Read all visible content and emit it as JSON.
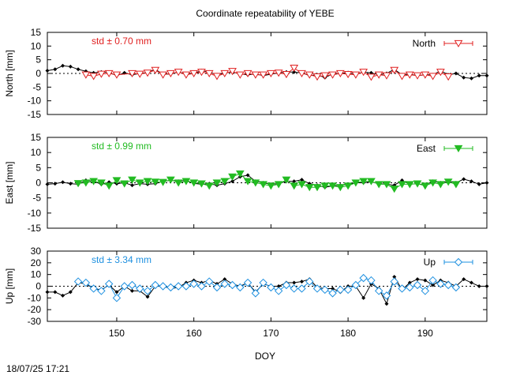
{
  "footer_timestamp": "18/07/25 17:21",
  "chart_data": {
    "type": "line",
    "title": "Coordinate repeatability of YEBE",
    "xlabel": "DOY",
    "xlim": [
      141,
      198
    ],
    "xticks": [
      150,
      160,
      170,
      180,
      190
    ],
    "panels": [
      {
        "name": "north",
        "ylabel": "North [mm]",
        "ylim": [
          -15,
          15
        ],
        "yticks": [
          15,
          10,
          5,
          0,
          -5,
          -10,
          -15
        ],
        "legend": "North",
        "legend_position": "top-right",
        "std_label": "std ± 0.70 mm",
        "color": "#e02020",
        "marker": "triangle-down-open",
        "series_black": {
          "x": [
            141,
            142,
            143,
            144,
            145,
            146,
            147,
            148,
            149,
            150,
            151,
            152,
            153,
            154,
            155,
            156,
            157,
            158,
            159,
            160,
            161,
            162,
            163,
            164,
            165,
            166,
            167,
            168,
            169,
            170,
            171,
            172,
            173,
            174,
            175,
            176,
            177,
            178,
            179,
            180,
            181,
            182,
            183,
            184,
            185,
            186,
            187,
            188,
            189,
            190,
            191,
            192,
            193,
            194,
            195,
            196,
            197,
            198
          ],
          "values": [
            1,
            1.5,
            2.8,
            2.5,
            1.5,
            0.8,
            0.2,
            0.5,
            0.3,
            -0.8,
            0.2,
            -0.5,
            0,
            0.3,
            1.5,
            -0.3,
            -0.2,
            0.5,
            -0.2,
            0,
            1,
            0.5,
            -0.5,
            0.2,
            0.5,
            -0.2,
            -0.5,
            -0.2,
            -0.8,
            -0.3,
            0.2,
            0.5,
            0.5,
            0.2,
            -0.8,
            -0.5,
            -1.5,
            -0.2,
            0,
            0.3,
            -0.3,
            0.5,
            0.2,
            -0.5,
            0,
            1.5,
            -0.5,
            -0.3,
            -0.8,
            -0.5,
            -0.5,
            1,
            -0.5,
            0,
            -1.5,
            -1.8,
            -0.8,
            -0.8
          ]
        },
        "series_colored": {
          "x": [
            146,
            147,
            148,
            149,
            150,
            152,
            153,
            154,
            155,
            156,
            157,
            158,
            159,
            160,
            161,
            162,
            163,
            164,
            165,
            166,
            167,
            168,
            169,
            170,
            171,
            172,
            173,
            174,
            175,
            176,
            177,
            178,
            179,
            180,
            181,
            182,
            183,
            184,
            185,
            186,
            187,
            188,
            189,
            190,
            191,
            192,
            193
          ],
          "values": [
            -0.5,
            -1,
            -0.2,
            0,
            -0.5,
            0,
            -0.2,
            0.2,
            1.2,
            -0.5,
            0,
            0.5,
            -0.5,
            0,
            0.5,
            0,
            -1,
            0,
            0.8,
            -0.5,
            0,
            -0.5,
            -0.5,
            0,
            0.2,
            -0.3,
            2,
            0,
            -0.5,
            -1.2,
            -0.8,
            -0.5,
            0,
            -0.3,
            -0.5,
            0.5,
            -1.3,
            -0.5,
            -0.8,
            1.2,
            -1,
            -0.5,
            -0.8,
            -0.5,
            -1,
            0.5,
            -1.2
          ]
        }
      },
      {
        "name": "east",
        "ylabel": "East [mm]",
        "ylim": [
          -15,
          15
        ],
        "yticks": [
          15,
          10,
          5,
          0,
          -5,
          -10,
          -15
        ],
        "legend": "East",
        "legend_position": "top-right",
        "std_label": "std ± 0.99 mm",
        "color": "#22bb22",
        "marker": "triangle-down-filled",
        "series_black": {
          "x": [
            141,
            142,
            143,
            144,
            145,
            146,
            147,
            148,
            149,
            150,
            151,
            152,
            153,
            154,
            155,
            156,
            157,
            158,
            159,
            160,
            161,
            162,
            163,
            164,
            165,
            166,
            167,
            168,
            169,
            170,
            171,
            172,
            173,
            174,
            175,
            176,
            177,
            178,
            179,
            180,
            181,
            182,
            183,
            184,
            185,
            186,
            187,
            188,
            189,
            190,
            191,
            192,
            193,
            194,
            195,
            196,
            197,
            198
          ],
          "values": [
            -0.5,
            -0.3,
            0.2,
            -0.3,
            -0.5,
            0.8,
            0.5,
            -0.5,
            0.2,
            -0.3,
            0,
            -0.8,
            -0.3,
            -0.5,
            -0.3,
            0.5,
            0.8,
            0.5,
            0.8,
            -0.2,
            -0.5,
            -0.3,
            -0.8,
            -0.3,
            0.5,
            2,
            2.5,
            0.5,
            0,
            -0.5,
            -0.3,
            0.5,
            0.5,
            1,
            -0.3,
            -0.8,
            -1.5,
            -1,
            -0.8,
            -0.5,
            0,
            0,
            0.3,
            -0.3,
            -0.5,
            -0.8,
            0.8,
            -0.5,
            -0.3,
            -0.8,
            0.5,
            0,
            0.5,
            0,
            1.2,
            0.5,
            -0.5,
            0
          ]
        },
        "series_colored": {
          "x": [
            145,
            146,
            147,
            148,
            149,
            150,
            151,
            152,
            153,
            154,
            155,
            156,
            157,
            158,
            159,
            160,
            161,
            162,
            163,
            164,
            165,
            166,
            167,
            168,
            169,
            170,
            171,
            172,
            173,
            174,
            175,
            176,
            177,
            178,
            179,
            180,
            181,
            182,
            183,
            184,
            185,
            186,
            187,
            188,
            189,
            190,
            191,
            192,
            193,
            194
          ],
          "values": [
            -0.2,
            0,
            0.5,
            0,
            -1,
            0.8,
            -0.3,
            1,
            0,
            0.5,
            0.3,
            0.2,
            1,
            0,
            0.5,
            0,
            -0.3,
            -1,
            0,
            0.5,
            2,
            3,
            0.5,
            0,
            -0.5,
            -1,
            -0.5,
            1,
            -1,
            -0.5,
            -1.5,
            -1.5,
            -1,
            -1,
            -1.5,
            -1,
            0,
            0.5,
            0.5,
            -0.5,
            -0.5,
            -2,
            -0.5,
            -0.5,
            -0.3,
            -1,
            0,
            -0.5,
            0.3,
            -0.5
          ]
        }
      },
      {
        "name": "up",
        "ylabel": "Up [mm]",
        "ylim": [
          -30,
          30
        ],
        "yticks": [
          30,
          20,
          10,
          0,
          -10,
          -20,
          -30
        ],
        "legend": "Up",
        "legend_position": "top-right",
        "std_label": "std ± 3.34 mm",
        "color": "#1e90e0",
        "marker": "diamond-open",
        "series_black": {
          "x": [
            141,
            142,
            143,
            144,
            145,
            146,
            147,
            148,
            149,
            150,
            151,
            152,
            153,
            154,
            155,
            156,
            157,
            158,
            159,
            160,
            161,
            162,
            163,
            164,
            165,
            166,
            167,
            168,
            169,
            170,
            171,
            172,
            173,
            174,
            175,
            176,
            177,
            178,
            179,
            180,
            181,
            182,
            183,
            184,
            185,
            186,
            187,
            188,
            189,
            190,
            191,
            192,
            193,
            194,
            195,
            196,
            197,
            198
          ],
          "values": [
            -5,
            -5,
            -8,
            -5,
            3,
            2,
            -2,
            -3,
            1,
            -5,
            0,
            -4,
            -4,
            -9,
            0,
            0,
            -2,
            -1,
            3,
            5,
            3,
            5,
            2,
            6,
            2,
            0,
            3,
            -5,
            2,
            0,
            0,
            3,
            3,
            4,
            6,
            -1,
            -2,
            -2,
            -5,
            0,
            0,
            -10,
            2,
            -2,
            -15,
            8,
            -3,
            3,
            6,
            5,
            1,
            5,
            3,
            0,
            6,
            3,
            0,
            0
          ]
        },
        "series_colored": {
          "x": [
            145,
            146,
            147,
            148,
            149,
            150,
            151,
            152,
            153,
            154,
            155,
            156,
            157,
            158,
            159,
            160,
            161,
            162,
            163,
            164,
            165,
            166,
            167,
            168,
            169,
            170,
            171,
            172,
            173,
            174,
            175,
            176,
            177,
            178,
            179,
            180,
            181,
            182,
            183,
            184,
            185,
            186,
            187,
            188,
            189,
            190,
            191,
            192,
            193,
            194
          ],
          "values": [
            4,
            3,
            -2,
            -4,
            2,
            -10,
            0,
            1,
            -2,
            -4,
            1,
            0,
            -1,
            0,
            0,
            2,
            0,
            4,
            -1,
            2,
            1,
            -1,
            3,
            -6,
            3,
            -1,
            -4,
            1,
            -2,
            -2,
            4,
            -2,
            -3,
            -6,
            -3,
            -3,
            1,
            7,
            5,
            -4,
            -8,
            4,
            -2,
            -1,
            1,
            -4,
            5,
            2,
            1,
            -1
          ]
        }
      }
    ]
  }
}
